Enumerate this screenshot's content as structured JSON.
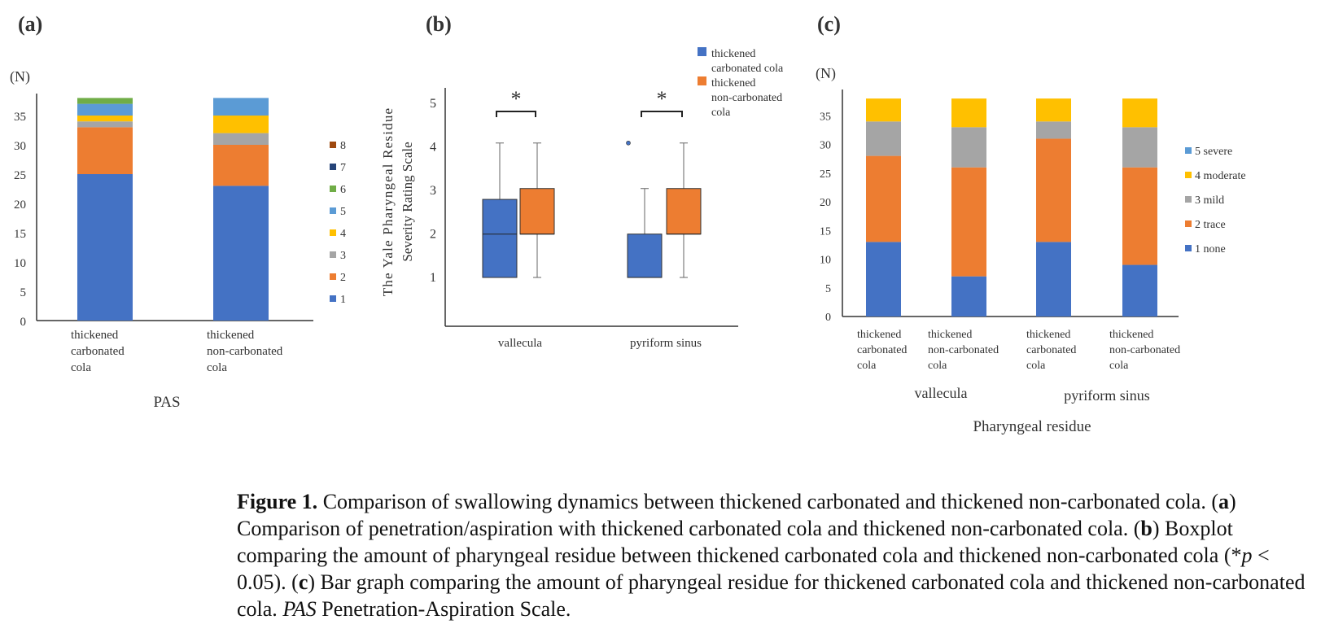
{
  "chart_data": [
    {
      "type": "bar",
      "stacked": true,
      "panel_label": "(a)",
      "unit_label": "(N)",
      "xlabel": "PAS",
      "categories": [
        [
          "thickened",
          "carbonated",
          "cola"
        ],
        [
          "thickened",
          "non-carbonated",
          "cola"
        ]
      ],
      "ylim": [
        0,
        38
      ],
      "yticks": [
        0,
        5,
        10,
        15,
        20,
        25,
        30,
        35
      ],
      "legend_position": "right",
      "series": [
        {
          "name": "1",
          "color": "#4472c4",
          "values": [
            25,
            23
          ]
        },
        {
          "name": "2",
          "color": "#ed7d31",
          "values": [
            8,
            7
          ]
        },
        {
          "name": "3",
          "color": "#a5a5a5",
          "values": [
            1,
            2
          ]
        },
        {
          "name": "4",
          "color": "#ffc000",
          "values": [
            1,
            3
          ]
        },
        {
          "name": "5",
          "color": "#5b9bd5",
          "values": [
            2,
            3
          ]
        },
        {
          "name": "6",
          "color": "#70ad47",
          "values": [
            1,
            0
          ]
        },
        {
          "name": "7",
          "color": "#264478",
          "values": [
            0,
            0
          ]
        },
        {
          "name": "8",
          "color": "#9e480e",
          "values": [
            0,
            0
          ]
        }
      ]
    },
    {
      "type": "boxplot",
      "panel_label": "(b)",
      "ylabel_lines": [
        "The Yale Pharyngeal Residue",
        "Severity Rating Scale"
      ],
      "categories": [
        "vallecula",
        "pyriform sinus"
      ],
      "ylim": [
        0,
        5.3
      ],
      "yticks": [
        1,
        2,
        3,
        4,
        5
      ],
      "legend_position": "top-right",
      "significance_marker": "*",
      "series": [
        {
          "name": "thickened carbonated cola",
          "color": "#4472c4",
          "boxes": [
            {
              "min": 1,
              "q1": 1,
              "median": 2,
              "q3": 2.8,
              "max": 4.1,
              "outliers": []
            },
            {
              "min": 1,
              "q1": 1,
              "median": 1,
              "q3": 2,
              "max": 3.05,
              "outliers": [
                4.1
              ]
            }
          ]
        },
        {
          "name": "thickened non-carbonated cola",
          "color": "#ed7d31",
          "boxes": [
            {
              "min": 1,
              "q1": 2,
              "median": 2,
              "q3": 3.05,
              "max": 4.1,
              "outliers": []
            },
            {
              "min": 1,
              "q1": 2,
              "median": 2,
              "q3": 3.05,
              "max": 4.1,
              "outliers": []
            }
          ]
        }
      ],
      "legend_lines": [
        [
          "thickened",
          "carbonated cola"
        ],
        [
          "thickened",
          "non-carbonated",
          "cola"
        ]
      ]
    },
    {
      "type": "bar",
      "stacked": true,
      "panel_label": "(c)",
      "unit_label": "(N)",
      "xlabel": "Pharyngeal residue",
      "groups": [
        "vallecula",
        "pyriform sinus"
      ],
      "categories": [
        [
          "thickened",
          "carbonated",
          "cola"
        ],
        [
          "thickened",
          "non-carbonated",
          "cola"
        ],
        [
          "thickened",
          "carbonated",
          "cola"
        ],
        [
          "thickened",
          "non-carbonated",
          "cola"
        ]
      ],
      "ylim": [
        0,
        38
      ],
      "yticks": [
        0,
        5,
        10,
        15,
        20,
        25,
        30,
        35
      ],
      "legend_position": "right",
      "series": [
        {
          "name": "1 none",
          "color": "#4472c4",
          "values": [
            13,
            7,
            13,
            9
          ]
        },
        {
          "name": "2 trace",
          "color": "#ed7d31",
          "values": [
            15,
            19,
            18,
            17
          ]
        },
        {
          "name": "3 mild",
          "color": "#a5a5a5",
          "values": [
            6,
            7,
            3,
            7
          ]
        },
        {
          "name": "4 moderate",
          "color": "#ffc000",
          "values": [
            4,
            5,
            4,
            5
          ]
        },
        {
          "name": "5 severe",
          "color": "#5b9bd5",
          "values": [
            0,
            0,
            0,
            0
          ]
        }
      ]
    }
  ],
  "caption": {
    "label": "Figure 1.",
    "text_1": " Comparison of swallowing dynamics between thickened carbonated and thickened non-carbonated cola. (",
    "a": "a",
    "text_2": ") Comparison of penetration/aspiration with thickened carbonated cola and thickened non-carbonated cola. (",
    "b": "b",
    "text_3": ") Boxplot comparing the amount of pharyngeal residue between thickened carbonated cola and thickened non-carbonated cola (*",
    "p": "p",
    "text_4": " < 0.05). (",
    "c": "c",
    "text_5": ") Bar graph comparing the amount of pharyngeal residue for thickened carbonated cola and thickened non-carbonated cola. ",
    "pas": "PAS",
    "text_6": " Penetration-Aspiration Scale."
  }
}
